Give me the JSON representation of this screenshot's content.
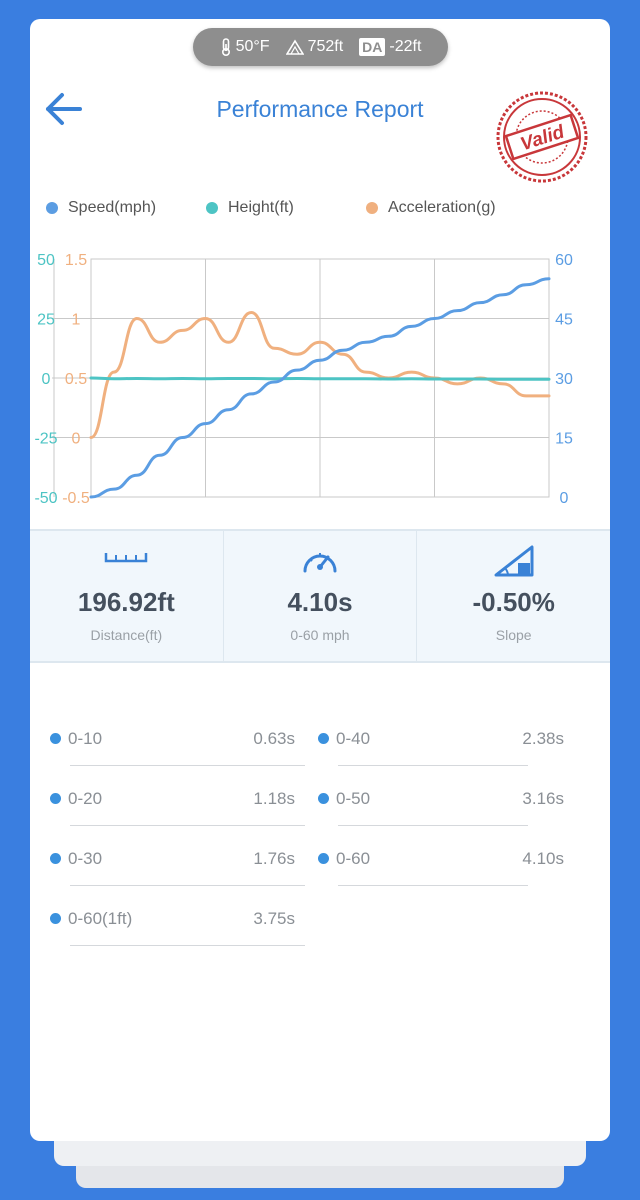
{
  "status_bar": {
    "temperature": "50°F",
    "elevation": "752ft",
    "da_badge": "DA",
    "density_altitude": "-22ft",
    "icons": [
      "thermometer-icon",
      "mountain-icon",
      "da-badge"
    ]
  },
  "header": {
    "title": "Performance Report",
    "back_icon": "arrow-left-icon",
    "stamp_text": "Valid"
  },
  "legend": [
    {
      "label": "Speed(mph)",
      "color": "#5b9de3"
    },
    {
      "label": "Height(ft)",
      "color": "#4dc4c4"
    },
    {
      "label": "Acceleration(g)",
      "color": "#f0b07f"
    }
  ],
  "chart_data": {
    "type": "line",
    "x": [
      0,
      1,
      2,
      3,
      4,
      5,
      6,
      7,
      8,
      9,
      10,
      11,
      12,
      13,
      14,
      15,
      16,
      17,
      18,
      19,
      20
    ],
    "series": [
      {
        "name": "Speed(mph)",
        "axis": "right-speed",
        "color": "#5b9de3",
        "values": [
          0,
          2,
          5.5,
          10.5,
          15,
          18.5,
          22,
          26,
          29,
          32,
          34.5,
          37,
          39,
          40.5,
          43,
          45,
          47,
          49,
          51,
          53.5,
          55
        ]
      },
      {
        "name": "Height(ft)",
        "axis": "left-height",
        "color": "#4dc4c4",
        "values": [
          0,
          -0.3,
          -0.2,
          -0.3,
          -0.2,
          -0.3,
          -0.2,
          -0.2,
          -0.3,
          -0.2,
          -0.3,
          -0.3,
          -0.3,
          -0.4,
          -0.3,
          -0.4,
          -0.4,
          -0.4,
          -0.5,
          -0.5,
          -0.5
        ]
      },
      {
        "name": "Acceleration(g)",
        "axis": "left-acceleration",
        "color": "#f0b07f",
        "values": [
          0,
          0.55,
          1.0,
          0.8,
          0.9,
          1.0,
          0.8,
          1.05,
          0.75,
          0.7,
          0.8,
          0.7,
          0.55,
          0.5,
          0.55,
          0.5,
          0.45,
          0.5,
          0.45,
          0.35,
          0.35
        ]
      }
    ],
    "axes": {
      "left_height": {
        "ticks": [
          "50",
          "25",
          "0",
          "-25",
          "-50"
        ],
        "range": [
          -50,
          50
        ],
        "color": "#4dc4c4"
      },
      "left_acceleration": {
        "ticks": [
          "1.5",
          "1",
          "0.5",
          "0",
          "-0.5"
        ],
        "range": [
          -0.5,
          1.5
        ],
        "color": "#f0b07f"
      },
      "right_speed": {
        "ticks": [
          "60",
          "45",
          "30",
          "15",
          "0"
        ],
        "range": [
          0,
          60
        ],
        "color": "#5b9de3"
      }
    },
    "grid": true
  },
  "stats": [
    {
      "value": "196.92ft",
      "label": "Distance(ft)",
      "icon": "ruler-icon"
    },
    {
      "value": "4.10s",
      "label": "0-60 mph",
      "icon": "speedometer-icon"
    },
    {
      "value": "-0.50%",
      "label": "Slope",
      "icon": "slope-icon"
    }
  ],
  "splits": {
    "left": [
      {
        "name": "0-10",
        "time": "0.63s"
      },
      {
        "name": "0-20",
        "time": "1.18s"
      },
      {
        "name": "0-30",
        "time": "1.76s"
      },
      {
        "name": "0-60(1ft)",
        "time": "3.75s"
      }
    ],
    "right": [
      {
        "name": "0-40",
        "time": "2.38s"
      },
      {
        "name": "0-50",
        "time": "3.16s"
      },
      {
        "name": "0-60",
        "time": "4.10s"
      }
    ]
  }
}
